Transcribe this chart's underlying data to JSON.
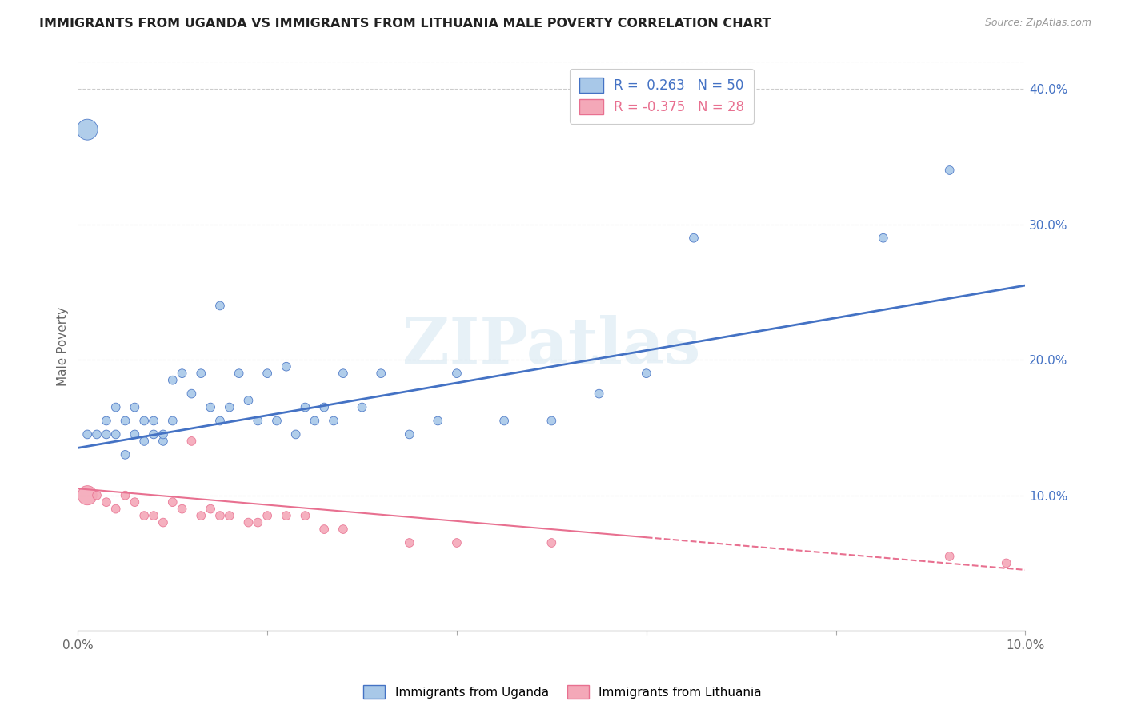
{
  "title": "IMMIGRANTS FROM UGANDA VS IMMIGRANTS FROM LITHUANIA MALE POVERTY CORRELATION CHART",
  "source": "Source: ZipAtlas.com",
  "ylabel": "Male Poverty",
  "watermark": "ZIPatlas",
  "legend_uganda": "R =  0.263   N = 50",
  "legend_lithuania": "R = -0.375   N = 28",
  "uganda_color": "#a8c8e8",
  "lithuania_color": "#f4a8b8",
  "uganda_line_color": "#4472c4",
  "lithuania_line_color": "#e87090",
  "uganda_scatter_x": [
    0.001,
    0.001,
    0.002,
    0.003,
    0.003,
    0.004,
    0.004,
    0.005,
    0.005,
    0.006,
    0.006,
    0.007,
    0.007,
    0.008,
    0.008,
    0.009,
    0.009,
    0.01,
    0.01,
    0.011,
    0.012,
    0.013,
    0.014,
    0.015,
    0.015,
    0.016,
    0.017,
    0.018,
    0.019,
    0.02,
    0.021,
    0.022,
    0.023,
    0.024,
    0.025,
    0.026,
    0.027,
    0.028,
    0.03,
    0.032,
    0.035,
    0.038,
    0.04,
    0.045,
    0.05,
    0.055,
    0.06,
    0.065,
    0.085,
    0.092
  ],
  "uganda_scatter_y": [
    0.37,
    0.145,
    0.145,
    0.145,
    0.155,
    0.165,
    0.145,
    0.155,
    0.13,
    0.165,
    0.145,
    0.155,
    0.14,
    0.155,
    0.145,
    0.14,
    0.145,
    0.155,
    0.185,
    0.19,
    0.175,
    0.19,
    0.165,
    0.24,
    0.155,
    0.165,
    0.19,
    0.17,
    0.155,
    0.19,
    0.155,
    0.195,
    0.145,
    0.165,
    0.155,
    0.165,
    0.155,
    0.19,
    0.165,
    0.19,
    0.145,
    0.155,
    0.19,
    0.155,
    0.155,
    0.175,
    0.19,
    0.29,
    0.29,
    0.34
  ],
  "lithuania_scatter_x": [
    0.001,
    0.002,
    0.003,
    0.004,
    0.005,
    0.006,
    0.007,
    0.008,
    0.009,
    0.01,
    0.011,
    0.012,
    0.013,
    0.014,
    0.015,
    0.016,
    0.018,
    0.019,
    0.02,
    0.022,
    0.024,
    0.026,
    0.028,
    0.035,
    0.04,
    0.05,
    0.092,
    0.098
  ],
  "lithuania_scatter_y": [
    0.1,
    0.1,
    0.095,
    0.09,
    0.1,
    0.095,
    0.085,
    0.085,
    0.08,
    0.095,
    0.09,
    0.14,
    0.085,
    0.09,
    0.085,
    0.085,
    0.08,
    0.08,
    0.085,
    0.085,
    0.085,
    0.075,
    0.075,
    0.065,
    0.065,
    0.065,
    0.055,
    0.05
  ],
  "xlim": [
    0.0,
    0.1
  ],
  "ylim": [
    0.0,
    0.42
  ],
  "uganda_line_x0": 0.0,
  "uganda_line_y0": 0.135,
  "uganda_line_x1": 0.1,
  "uganda_line_y1": 0.255,
  "lithuania_line_x0": 0.0,
  "lithuania_line_y0": 0.105,
  "lithuania_line_x1": 0.1,
  "lithuania_line_y1": 0.045,
  "lithuania_line_dash_start": 0.06
}
